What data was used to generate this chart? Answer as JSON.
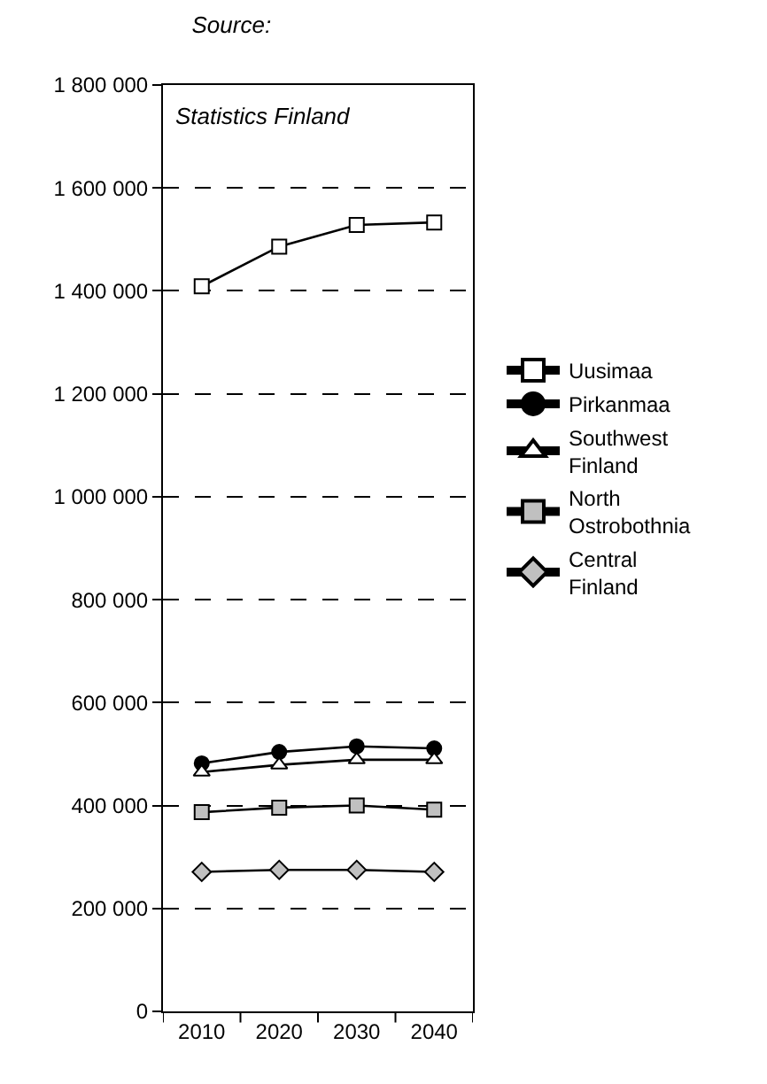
{
  "chart_data": {
    "type": "line",
    "title": "Source:",
    "annotations": [
      "Statistics Finland"
    ],
    "categories": [
      "2010",
      "2020",
      "2030",
      "2040"
    ],
    "series": [
      {
        "name": "Uusimaa",
        "color": "#ffffff",
        "marker": "square",
        "values": [
          1409000,
          1486000,
          1528000,
          1533000
        ]
      },
      {
        "name": "Pirkanmaa",
        "color": "#000000",
        "marker": "circle",
        "values": [
          482000,
          504000,
          515000,
          511000
        ]
      },
      {
        "name": "Southwest Finland",
        "color": "#ffffff",
        "marker": "triangle",
        "values": [
          465000,
          479000,
          489000,
          489000
        ]
      },
      {
        "name": "North Ostrobothnia",
        "color": "#c0c0c0",
        "marker": "square",
        "values": [
          387000,
          396000,
          400000,
          392000
        ]
      },
      {
        "name": "Central Finland",
        "color": "#c0c0c0",
        "marker": "diamond",
        "values": [
          271000,
          275000,
          275000,
          271000
        ]
      }
    ],
    "ylim": [
      0,
      1800000
    ],
    "yticks": [
      {
        "value": 0,
        "label": "0"
      },
      {
        "value": 200000,
        "label": "200 000"
      },
      {
        "value": 400000,
        "label": "400 000"
      },
      {
        "value": 600000,
        "label": "600 000"
      },
      {
        "value": 800000,
        "label": "800 000"
      },
      {
        "value": 1000000,
        "label": "1 000 000"
      },
      {
        "value": 1200000,
        "label": "1 200 000"
      },
      {
        "value": 1400000,
        "label": "1 400 000"
      },
      {
        "value": 1600000,
        "label": "1 600 000"
      },
      {
        "value": 1800000,
        "label": "1 800 000"
      }
    ],
    "grid": "y",
    "legend": "right",
    "line_style": "solid"
  }
}
